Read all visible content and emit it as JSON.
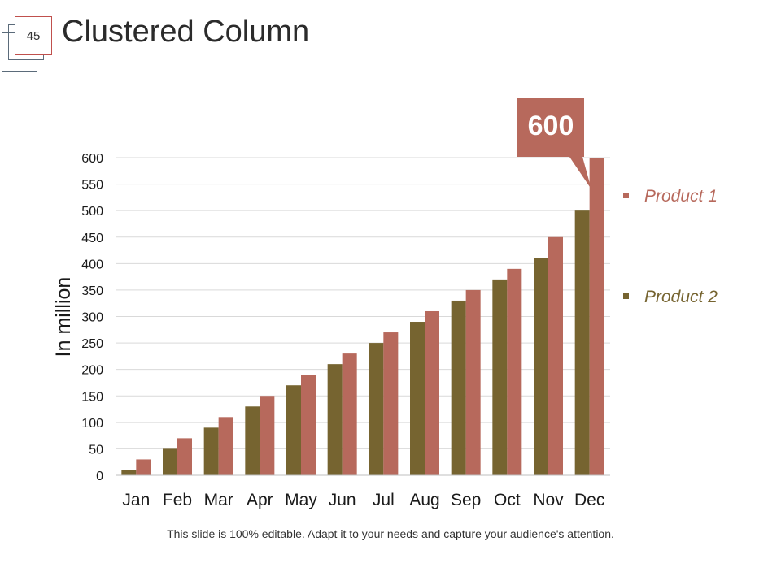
{
  "slide": {
    "page_number": "45",
    "title": "Clustered Column",
    "footer": "This slide is 100% editable. Adapt it to your needs and capture your audience's attention."
  },
  "colors": {
    "product1": "#b7695c",
    "product2": "#766430",
    "gridline": "#d9d9d9",
    "callout": "#b7695c"
  },
  "callout": {
    "text": "600",
    "series": "Product 1",
    "category": "Dec"
  },
  "chart_data": {
    "type": "bar",
    "title": "",
    "xlabel": "",
    "ylabel": "In million",
    "ylim": [
      0,
      600
    ],
    "yticks": [
      0,
      50,
      100,
      150,
      200,
      250,
      300,
      350,
      400,
      450,
      500,
      550,
      600
    ],
    "grid": true,
    "legend_position": "right",
    "categories": [
      "Jan",
      "Feb",
      "Mar",
      "Apr",
      "May",
      "Jun",
      "Jul",
      "Aug",
      "Sep",
      "Oct",
      "Nov",
      "Dec"
    ],
    "series": [
      {
        "name": "Product 2",
        "values": [
          10,
          50,
          90,
          130,
          170,
          210,
          250,
          290,
          330,
          370,
          410,
          500
        ]
      },
      {
        "name": "Product 1",
        "values": [
          30,
          70,
          110,
          150,
          190,
          230,
          270,
          310,
          350,
          390,
          450,
          600
        ]
      }
    ]
  }
}
